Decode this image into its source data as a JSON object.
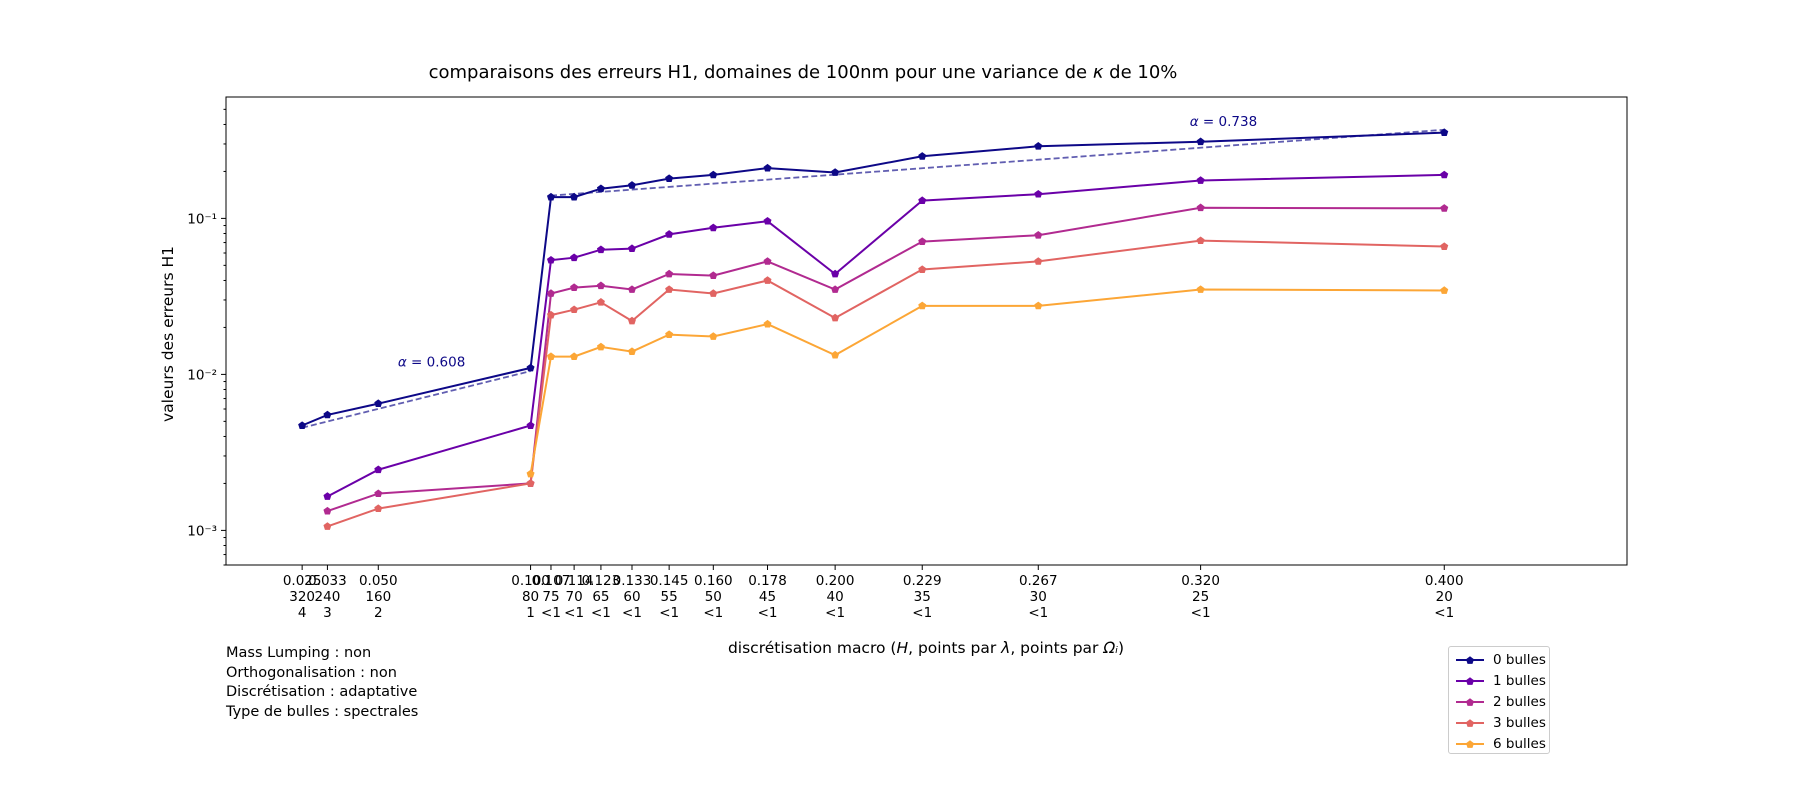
{
  "chart_data": {
    "type": "line",
    "title": "comparaisons des erreurs H1, domaines de 100nm pour une variance de κ de 10%",
    "xlabel": "discrétisation macro (H, points par λ, points par Ωᵢ)",
    "ylabel": "valeurs des erreurs H1",
    "yscale": "log",
    "ylim": [
      0.0006,
      0.6
    ],
    "ytick_labels": [
      "10⁻³",
      "10⁻²",
      "10⁻¹"
    ],
    "x_domain": [
      0.0,
      0.46
    ],
    "categories": [
      {
        "x": 0.025,
        "h": "0.025",
        "ppl": "320",
        "ppo": "4"
      },
      {
        "x": 0.0333,
        "h": "0.033",
        "ppl": "240",
        "ppo": "3"
      },
      {
        "x": 0.05,
        "h": "0.050",
        "ppl": "160",
        "ppo": "2"
      },
      {
        "x": 0.1,
        "h": "0.100",
        "ppl": "80",
        "ppo": "1"
      },
      {
        "x": 0.1067,
        "h": "0.107",
        "ppl": "75",
        "ppo": "<1"
      },
      {
        "x": 0.1143,
        "h": "0.114",
        "ppl": "70",
        "ppo": "<1"
      },
      {
        "x": 0.1231,
        "h": "0.123",
        "ppl": "65",
        "ppo": "<1"
      },
      {
        "x": 0.1333,
        "h": "0.133",
        "ppl": "60",
        "ppo": "<1"
      },
      {
        "x": 0.1455,
        "h": "0.145",
        "ppl": "55",
        "ppo": "<1"
      },
      {
        "x": 0.16,
        "h": "0.160",
        "ppl": "50",
        "ppo": "<1"
      },
      {
        "x": 0.1778,
        "h": "0.178",
        "ppl": "45",
        "ppo": "<1"
      },
      {
        "x": 0.2,
        "h": "0.200",
        "ppl": "40",
        "ppo": "<1"
      },
      {
        "x": 0.2286,
        "h": "0.229",
        "ppl": "35",
        "ppo": "<1"
      },
      {
        "x": 0.2667,
        "h": "0.267",
        "ppl": "30",
        "ppo": "<1"
      },
      {
        "x": 0.32,
        "h": "0.320",
        "ppl": "25",
        "ppo": "<1"
      },
      {
        "x": 0.4,
        "h": "0.400",
        "ppl": "20",
        "ppo": "<1"
      }
    ],
    "series": [
      {
        "name": "0 bulles",
        "color": "#0d0887",
        "values": [
          0.0047,
          0.0055,
          0.0065,
          0.011,
          0.137,
          0.137,
          0.155,
          0.163,
          0.18,
          0.19,
          0.21,
          0.197,
          0.25,
          0.29,
          0.31,
          0.355
        ]
      },
      {
        "name": "1 bulles",
        "color": "#6a00a8",
        "values": [
          null,
          0.00165,
          0.00245,
          0.0047,
          0.054,
          0.056,
          0.063,
          0.064,
          0.079,
          0.087,
          0.096,
          0.044,
          0.13,
          0.143,
          0.175,
          0.19
        ]
      },
      {
        "name": "2 bulles",
        "color": "#b12a90",
        "values": [
          null,
          0.00133,
          0.00172,
          0.002,
          0.033,
          0.036,
          0.037,
          0.035,
          0.044,
          0.043,
          0.053,
          0.035,
          0.071,
          0.078,
          0.117,
          0.116
        ]
      },
      {
        "name": "3 bulles",
        "color": "#e16462",
        "values": [
          null,
          0.00106,
          0.00138,
          0.002,
          0.024,
          0.026,
          0.029,
          0.022,
          0.035,
          0.033,
          0.04,
          0.023,
          0.047,
          0.053,
          0.072,
          0.066
        ]
      },
      {
        "name": "6 bulles",
        "color": "#fca636",
        "values": [
          null,
          null,
          null,
          0.0023,
          0.013,
          0.013,
          0.015,
          0.014,
          0.018,
          0.0175,
          0.021,
          0.0133,
          0.0275,
          0.0275,
          0.035,
          0.0345
        ]
      }
    ],
    "fits": [
      {
        "label": "α = 0.608",
        "color": "#0d0887",
        "x": [
          0.025,
          0.1
        ],
        "y": [
          0.00455,
          0.0105
        ],
        "label_x": 0.0675,
        "label_y": 0.0112
      },
      {
        "label": "α = 0.738",
        "color": "#0d0887",
        "x": [
          0.1067,
          0.4
        ],
        "y": [
          0.14,
          0.37
        ],
        "label_x": 0.3275,
        "label_y": 0.39
      }
    ],
    "grid": false,
    "legend_position": "lower right, outside plot"
  },
  "info_lines": [
    "Mass Lumping : non",
    "Orthogonalisation : non",
    "Discrétisation : adaptative",
    "Type de bulles : spectrales"
  ]
}
